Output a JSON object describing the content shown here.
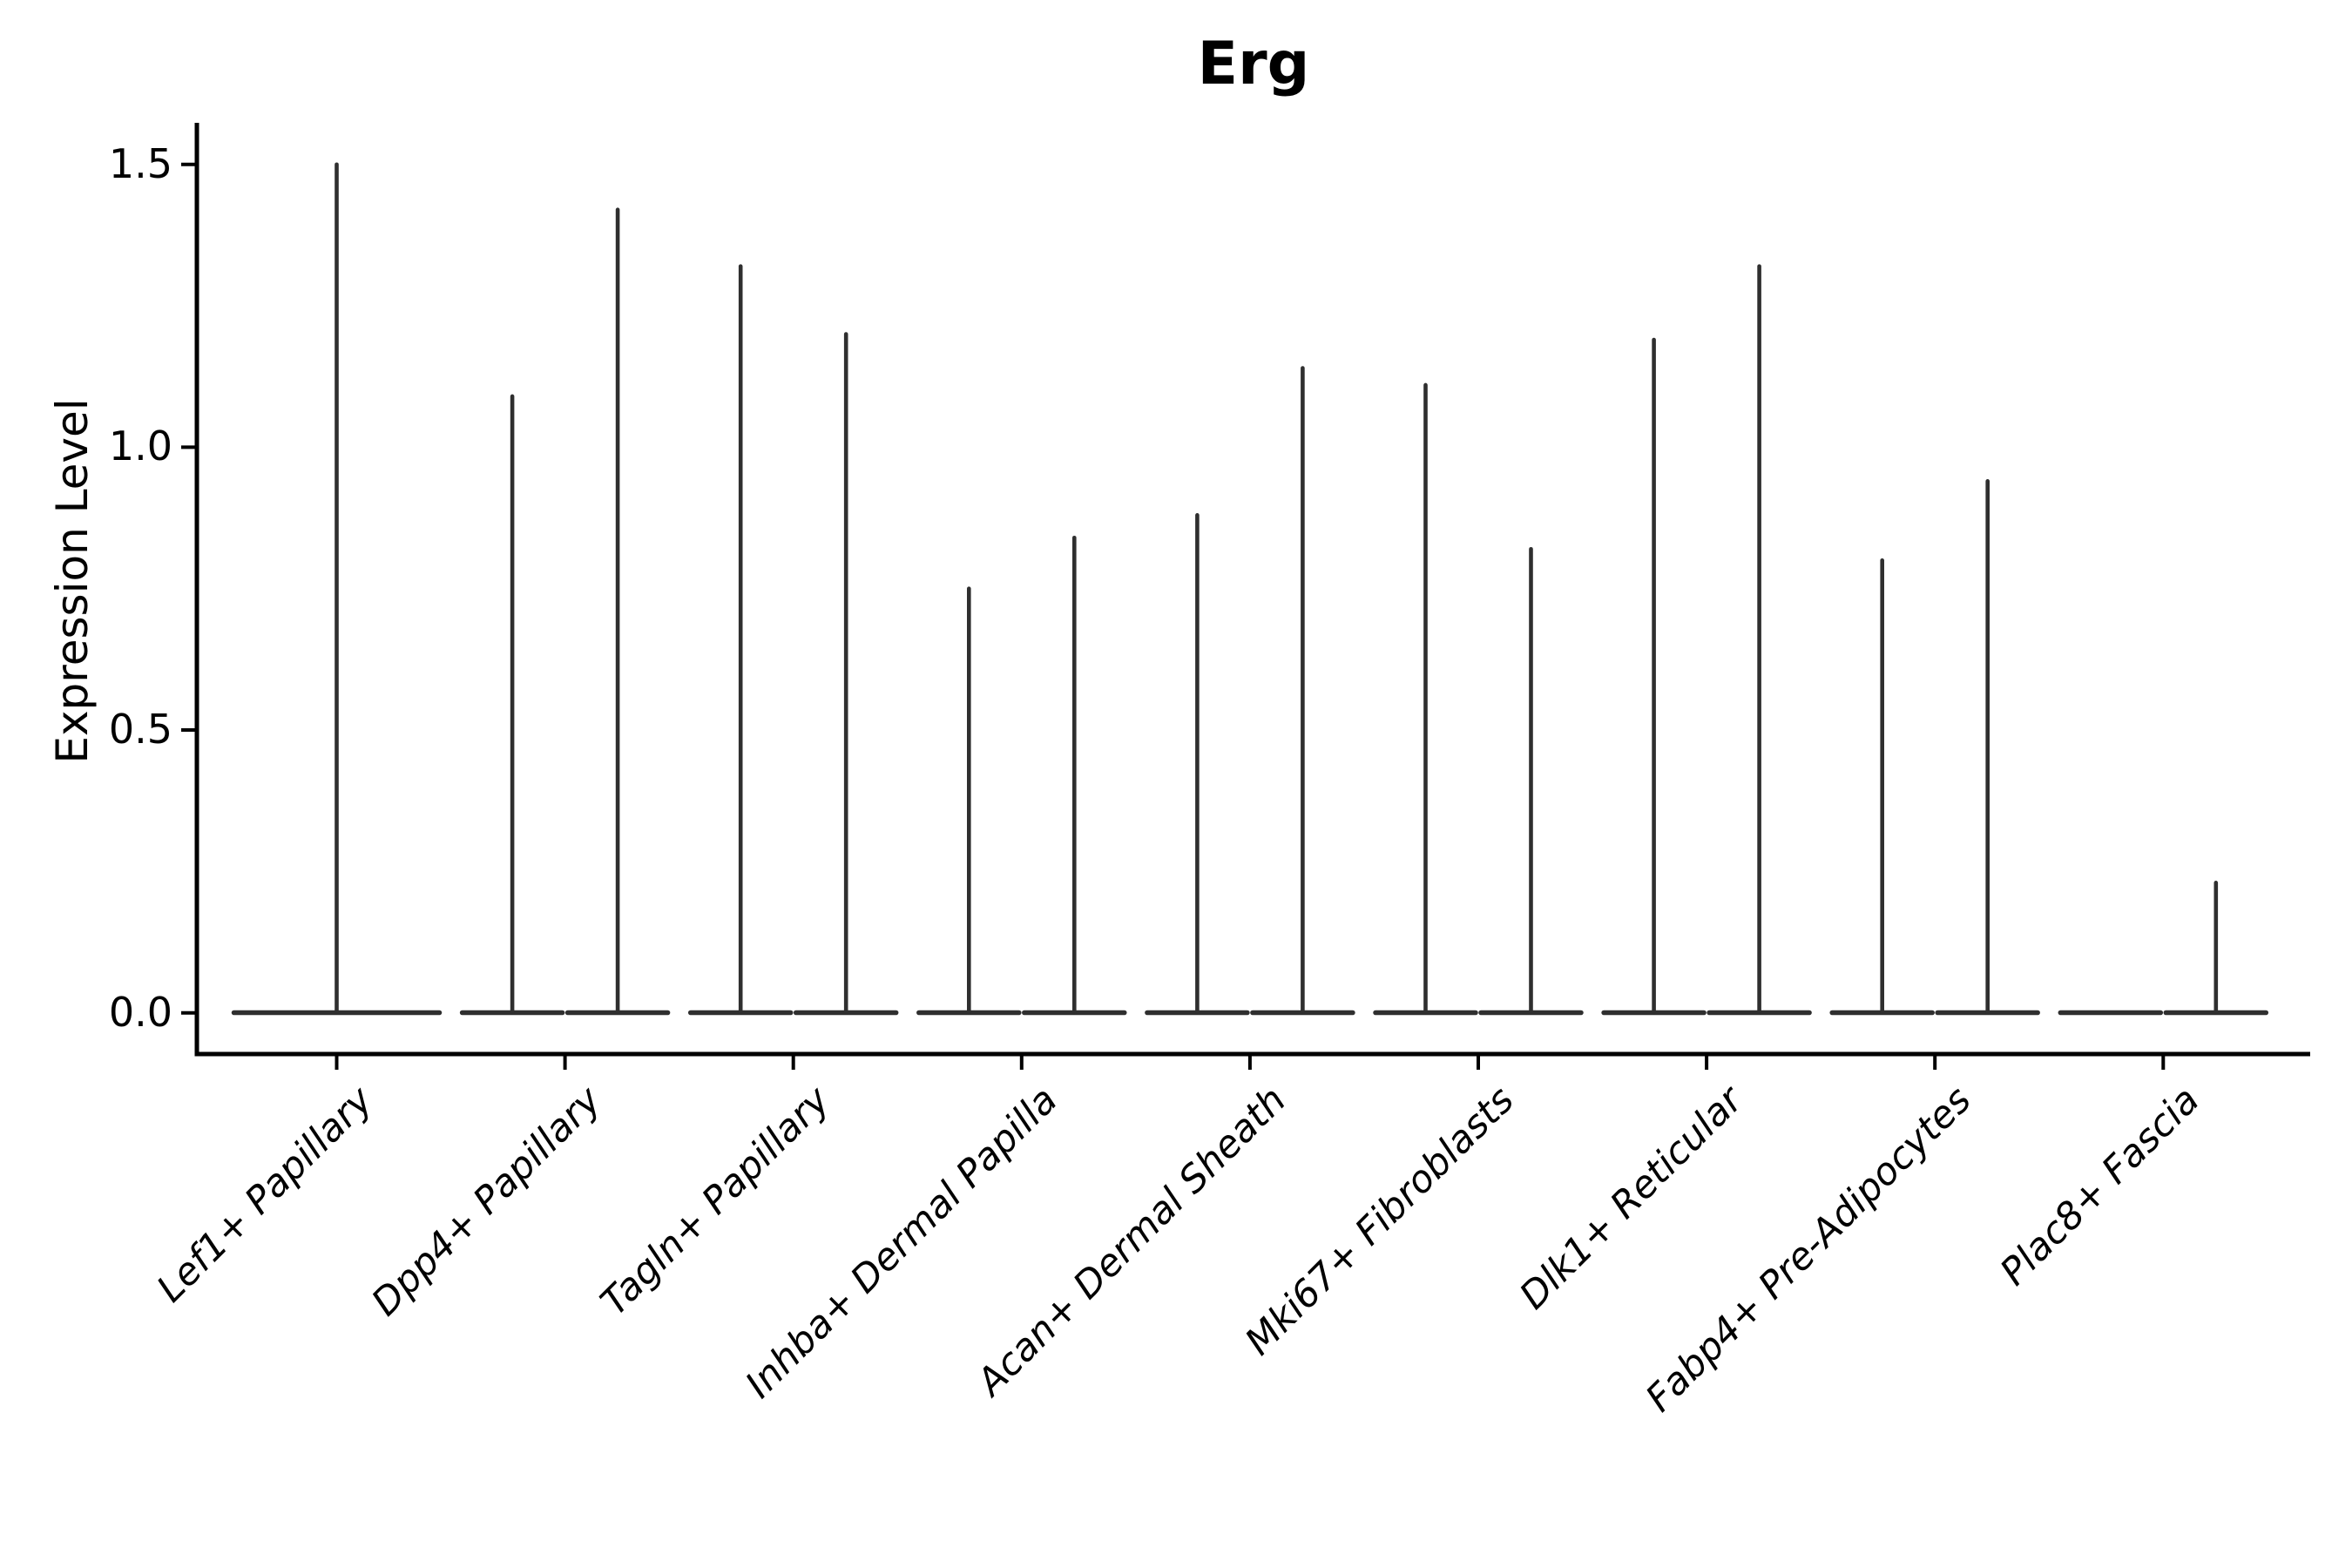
{
  "chart_data": {
    "type": "violin",
    "title": "Erg",
    "xlabel": "",
    "ylabel": "Expression Level",
    "grid": false,
    "legend": false,
    "ylim": [
      -0.07,
      1.57
    ],
    "yticks": [
      "0.0",
      "0.5",
      "1.0",
      "1.5"
    ],
    "ytick_values": [
      0.0,
      0.5,
      1.0,
      1.5
    ],
    "x_label_rotation_deg": 45,
    "categories": [
      {
        "label": "Lef1+ Papillary",
        "violins": [
          {
            "offset": 0,
            "halfwidth": 121,
            "max": 1.5
          }
        ]
      },
      {
        "label": "Dpp4+ Papillary",
        "violins": [
          {
            "offset": -60.5,
            "halfwidth": 60.5,
            "max": 1.09
          },
          {
            "offset": 60.5,
            "halfwidth": 60.5,
            "max": 1.42
          }
        ]
      },
      {
        "label": "Tagln+ Papillary",
        "violins": [
          {
            "offset": -60.5,
            "halfwidth": 60.5,
            "max": 1.32
          },
          {
            "offset": 60.5,
            "halfwidth": 60.5,
            "max": 1.2
          }
        ]
      },
      {
        "label": "Inhba+ Dermal Papilla",
        "violins": [
          {
            "offset": -60.5,
            "halfwidth": 60.5,
            "max": 0.75
          },
          {
            "offset": 60.5,
            "halfwidth": 60.5,
            "max": 0.84
          }
        ]
      },
      {
        "label": "Acan+ Dermal Sheath",
        "violins": [
          {
            "offset": -60.5,
            "halfwidth": 60.5,
            "max": 0.88
          },
          {
            "offset": 60.5,
            "halfwidth": 60.5,
            "max": 1.14
          }
        ]
      },
      {
        "label": "Mki67+ Fibroblasts",
        "violins": [
          {
            "offset": -60.5,
            "halfwidth": 60.5,
            "max": 1.11
          },
          {
            "offset": 60.5,
            "halfwidth": 60.5,
            "max": 0.82
          }
        ]
      },
      {
        "label": "Dlk1+ Reticular",
        "violins": [
          {
            "offset": -60.5,
            "halfwidth": 60.5,
            "max": 1.19
          },
          {
            "offset": 60.5,
            "halfwidth": 60.5,
            "max": 1.32
          }
        ]
      },
      {
        "label": "Fabp4+ Pre-Adipocytes",
        "violins": [
          {
            "offset": -60.5,
            "halfwidth": 60.5,
            "max": 0.8
          },
          {
            "offset": 60.5,
            "halfwidth": 60.5,
            "max": 0.94
          }
        ]
      },
      {
        "label": "Plac8+ Fascia",
        "violins": [
          {
            "offset": -60.5,
            "halfwidth": 60.5,
            "max": 0.0
          },
          {
            "offset": 60.5,
            "halfwidth": 60.5,
            "max": 0.23
          }
        ]
      }
    ]
  },
  "style": {
    "violin_color": "#2f2f2f",
    "axis_color": "#000000",
    "text_color": "#000000",
    "background": "#ffffff"
  }
}
